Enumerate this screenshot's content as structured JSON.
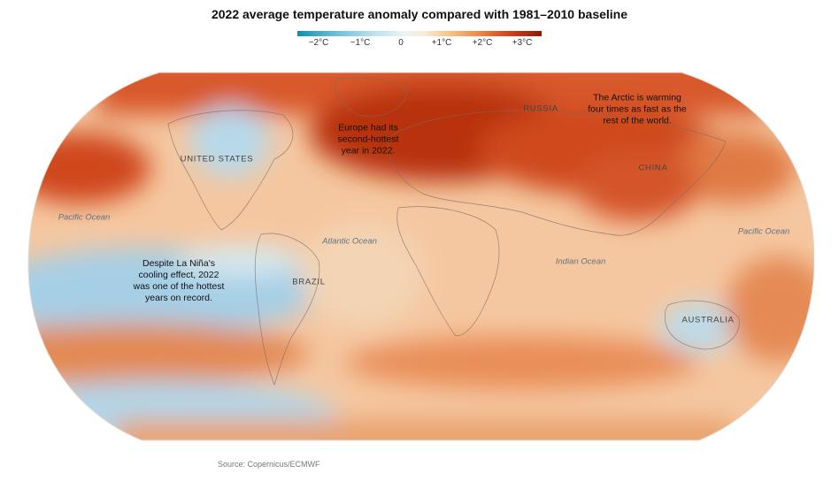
{
  "title": "2022 average temperature anomaly compared with 1981–2010 baseline",
  "legend": {
    "ticks": [
      "−2°C",
      "−1°C",
      "0",
      "+1°C",
      "+2°C",
      "+3°C"
    ],
    "colors": [
      "#0f8fab",
      "#6bc1d8",
      "#eef3f2",
      "#f7c487",
      "#d5451f",
      "#8d1a06"
    ]
  },
  "labels": {
    "russia": "RUSSIA",
    "united_states": "UNITED STATES",
    "china": "CHINA",
    "brazil": "BRAZIL",
    "australia": "AUSTRALIA",
    "pacific_west": "Pacific Ocean",
    "pacific_east": "Pacific Ocean",
    "atlantic": "Atlantic Ocean",
    "indian": "Indian Ocean"
  },
  "annotations": {
    "europe": "Europe had its\nsecond-hottest\nyear in 2022.",
    "arctic": "The Arctic is warming\nfour times as fast as the\nrest of the world.",
    "la_nina": "Despite La Niña's\ncooling effect, 2022\nwas one of the hottest\nyears on record."
  },
  "source": "Source: Copernicus/ECMWF"
}
